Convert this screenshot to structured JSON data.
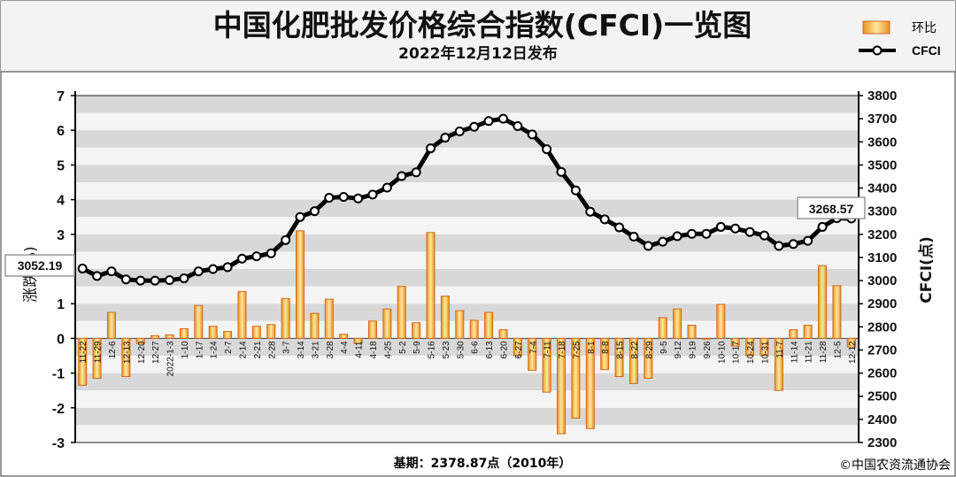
{
  "chart_data": {
    "type": "bar",
    "title": "中国化肥批发价格综合指数(CFCI)一览图",
    "subtitle": "2022年12月12日发布",
    "ylabel": "涨跌(%)",
    "y2label": "CFCI(点)",
    "ylim": [
      -3,
      7
    ],
    "y2lim": [
      2300,
      3800
    ],
    "yticks": [
      -3,
      -2,
      -1,
      0,
      1,
      2,
      3,
      4,
      5,
      6,
      7
    ],
    "y2ticks": [
      2300,
      2400,
      2500,
      2600,
      2700,
      2800,
      2900,
      3000,
      3100,
      3200,
      3300,
      3400,
      3500,
      3600,
      3700,
      3800
    ],
    "grid": true,
    "legend_position": "top-right",
    "categories": [
      "11-22",
      "11-29",
      "12-6",
      "12-13",
      "12-20",
      "12-27",
      "2022-1-3",
      "1-10",
      "1-17",
      "1-24",
      "2-7",
      "2-14",
      "2-21",
      "2-28",
      "3-7",
      "3-14",
      "3-21",
      "3-28",
      "4-4",
      "4-11",
      "4-18",
      "4-25",
      "5-2",
      "5-9",
      "5-16",
      "5-23",
      "5-30",
      "6-6",
      "6-13",
      "6-20",
      "6-27",
      "7-4",
      "7-11",
      "7-18",
      "7-25",
      "8-1",
      "8-8",
      "8-15",
      "8-22",
      "8-29",
      "9-5",
      "9-12",
      "9-19",
      "9-26",
      "10-10",
      "10-17",
      "10-24",
      "10-31",
      "11-7",
      "11-14",
      "11-21",
      "11-28",
      "12-5",
      "12-12"
    ],
    "series": [
      {
        "name": "环比",
        "type": "bar",
        "axis": "left",
        "values": [
          -1.35,
          -1.15,
          0.75,
          -1.1,
          -0.15,
          0.08,
          0.1,
          0.28,
          0.95,
          0.35,
          0.2,
          1.35,
          0.35,
          0.4,
          1.15,
          3.1,
          0.72,
          1.13,
          0.12,
          -0.15,
          0.5,
          0.85,
          1.5,
          0.45,
          3.05,
          1.22,
          0.8,
          0.52,
          0.75,
          0.25,
          -0.5,
          -0.92,
          -1.55,
          -2.75,
          -2.3,
          -2.6,
          -0.9,
          -1.1,
          -1.3,
          -1.15,
          0.6,
          0.85,
          0.38,
          0.0,
          0.98,
          -0.22,
          -0.5,
          -0.5,
          -1.5,
          0.25,
          0.38,
          2.1,
          1.52,
          -0.25
        ]
      },
      {
        "name": "CFCI",
        "type": "line",
        "axis": "right",
        "values": [
          3052.19,
          3020,
          3040,
          3005,
          3000,
          3000,
          3002,
          3010,
          3040,
          3050,
          3058,
          3095,
          3105,
          3118,
          3175,
          3275,
          3300,
          3358,
          3362,
          3355,
          3372,
          3402,
          3452,
          3468,
          3572,
          3618,
          3645,
          3665,
          3690,
          3700,
          3668,
          3632,
          3568,
          3470,
          3390,
          3298,
          3265,
          3230,
          3190,
          3150,
          3168,
          3192,
          3202,
          3202,
          3232,
          3225,
          3210,
          3195,
          3150,
          3158,
          3172,
          3232,
          3270,
          3268.57
        ]
      }
    ],
    "annotations": [
      "3052.19",
      "3268.57"
    ],
    "footer": "基期：2378.87点（2010年）",
    "credit": "©中国农资流通协会"
  },
  "colors": {
    "bar_top": "#fff0b0",
    "bar_bottom": "#f0a020",
    "bar_stroke": "#d2691e",
    "line": "#000000",
    "marker_fill": "#ffffff",
    "plot_grid_dark": "#d8d8d8",
    "plot_grid_light": "#f4f4f4"
  }
}
